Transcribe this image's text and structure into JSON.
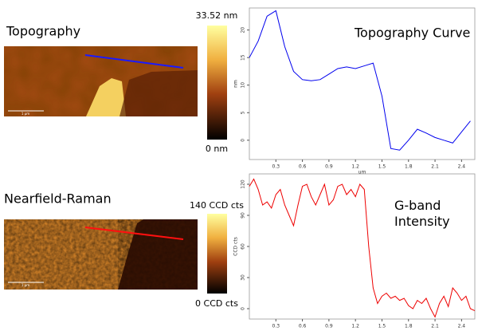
{
  "panels": [
    {
      "label": "Topography",
      "colorbar_max": "33.52 nm",
      "colorbar_min": "0 nm",
      "scale_bar": "1 µm"
    },
    {
      "label": "Nearfield-Raman",
      "colorbar_max": "140 CCD cts",
      "colorbar_min": "0 CCD cts",
      "scale_bar": "1 µm"
    }
  ],
  "chart_data": [
    {
      "type": "line",
      "annotation": "Topography Curve",
      "x_label": "um",
      "y_label": "nm",
      "x": [
        0,
        0.1,
        0.2,
        0.3,
        0.4,
        0.5,
        0.6,
        0.7,
        0.8,
        0.9,
        1.0,
        1.1,
        1.2,
        1.3,
        1.4,
        1.5,
        1.6,
        1.7,
        1.8,
        1.9,
        2.0,
        2.1,
        2.2,
        2.3,
        2.4,
        2.5
      ],
      "series": [
        {
          "color": "#0000ee",
          "values": [
            15,
            18,
            22.5,
            23.5,
            17,
            12.5,
            11,
            10.8,
            11,
            12,
            13,
            13.3,
            13,
            13.5,
            14,
            8,
            -1.5,
            -1.8,
            0,
            2,
            1.3,
            0.5,
            0,
            -0.5,
            1.5,
            3.5
          ]
        }
      ],
      "xlim": [
        0,
        2.55
      ],
      "ylim": [
        -3.5,
        24
      ],
      "xticks": [
        0.3,
        0.6,
        0.9,
        1.2,
        1.5,
        1.8,
        2.1,
        2.4
      ],
      "yticks": [
        0,
        5,
        10,
        15,
        20
      ]
    },
    {
      "type": "line",
      "annotation": "G-band Intensity",
      "y_label": "CCD cts",
      "x": [
        0,
        0.05,
        0.1,
        0.15,
        0.2,
        0.25,
        0.3,
        0.35,
        0.4,
        0.45,
        0.5,
        0.55,
        0.6,
        0.65,
        0.7,
        0.75,
        0.8,
        0.85,
        0.9,
        0.95,
        1.0,
        1.05,
        1.1,
        1.15,
        1.2,
        1.25,
        1.3,
        1.35,
        1.4,
        1.45,
        1.5,
        1.55,
        1.6,
        1.65,
        1.7,
        1.75,
        1.8,
        1.85,
        1.9,
        1.95,
        2.0,
        2.05,
        2.1,
        2.15,
        2.2,
        2.25,
        2.3,
        2.35,
        2.4,
        2.45,
        2.5,
        2.55
      ],
      "series": [
        {
          "color": "#ee0000",
          "values": [
            118,
            125,
            115,
            100,
            103,
            97,
            110,
            115,
            100,
            90,
            80,
            100,
            118,
            120,
            108,
            100,
            110,
            120,
            100,
            105,
            118,
            120,
            110,
            115,
            108,
            120,
            115,
            60,
            20,
            5,
            12,
            15,
            10,
            12,
            8,
            10,
            3,
            0,
            8,
            5,
            10,
            0,
            -8,
            5,
            12,
            2,
            20,
            15,
            8,
            12,
            0,
            -2
          ]
        }
      ],
      "xlim": [
        0,
        2.55
      ],
      "ylim": [
        -10,
        130
      ],
      "xticks": [
        0.3,
        0.6,
        0.9,
        1.2,
        1.5,
        1.8,
        2.1,
        2.4
      ],
      "yticks": [
        0,
        30,
        60,
        90,
        120
      ]
    }
  ]
}
